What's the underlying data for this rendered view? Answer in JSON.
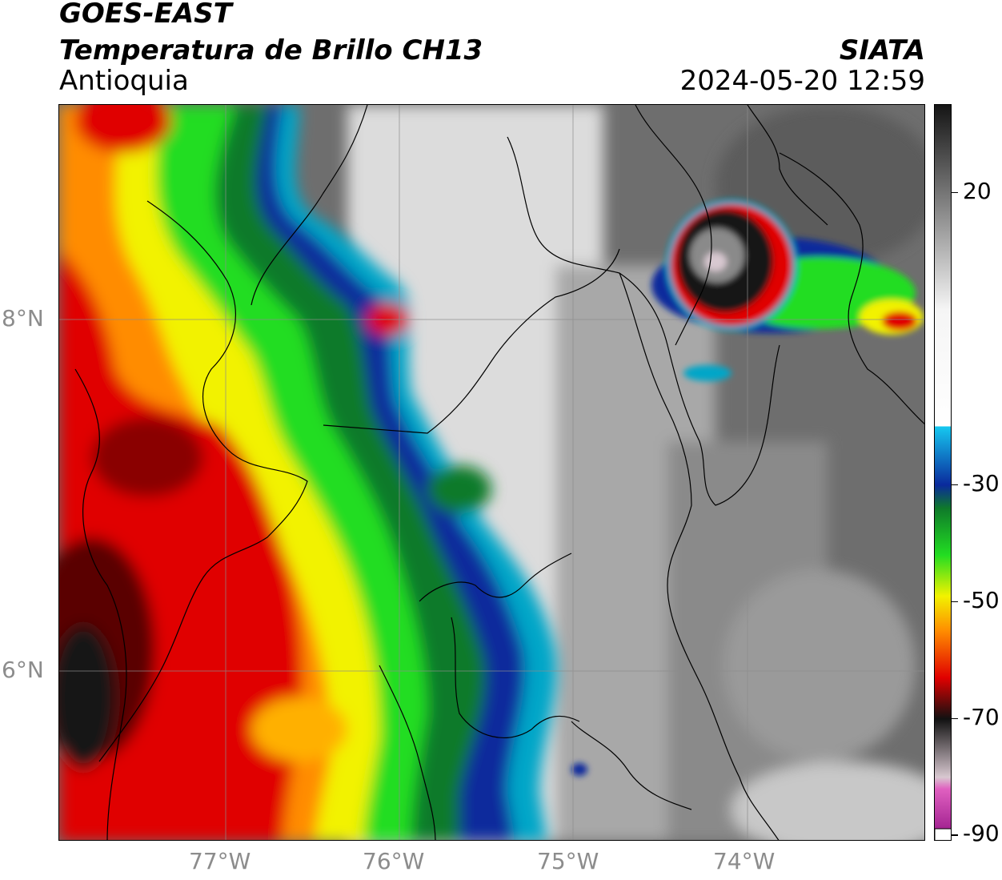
{
  "header": {
    "satellite": "GOES-EAST",
    "product": "Temperatura de Brillo CH13",
    "region": "Antioquia",
    "source": "SIATA",
    "datetime": "2024-05-20 12:59"
  },
  "map": {
    "type": "brightness-temperature-map",
    "lon_range": [
      -77.95,
      -72.95
    ],
    "lat_range": [
      5.0,
      9.2
    ],
    "lat_ticks": [
      "8°N",
      "6°N"
    ],
    "lon_ticks": [
      "77°W",
      "76°W",
      "75°W",
      "74°W"
    ],
    "grid": true
  },
  "colorbar": {
    "ticks": [
      "20",
      "-30",
      "-50",
      "-70",
      "-90"
    ],
    "tick_values": [
      20,
      -30,
      -50,
      -70,
      -90
    ],
    "range": [
      -91,
      35
    ],
    "color_stops": [
      {
        "value": 35,
        "color": "#151515"
      },
      {
        "value": 0,
        "color": "#f5f5f5"
      },
      {
        "value": -20,
        "color": "#ffffff"
      },
      {
        "value": -20.01,
        "color": "#16c8f0"
      },
      {
        "value": -30,
        "color": "#0a2a9c"
      },
      {
        "value": -34,
        "color": "#0f7a2a"
      },
      {
        "value": -42,
        "color": "#22dd22"
      },
      {
        "value": -49,
        "color": "#f2f200"
      },
      {
        "value": -55,
        "color": "#ff8c00"
      },
      {
        "value": -63,
        "color": "#e00000"
      },
      {
        "value": -70,
        "color": "#111111"
      },
      {
        "value": -80,
        "color": "#d8c8d0"
      },
      {
        "value": -82,
        "color": "#e060c0"
      },
      {
        "value": -90,
        "color": "#9a1a8a"
      }
    ],
    "bottom_box_color": "#ffffff"
  }
}
